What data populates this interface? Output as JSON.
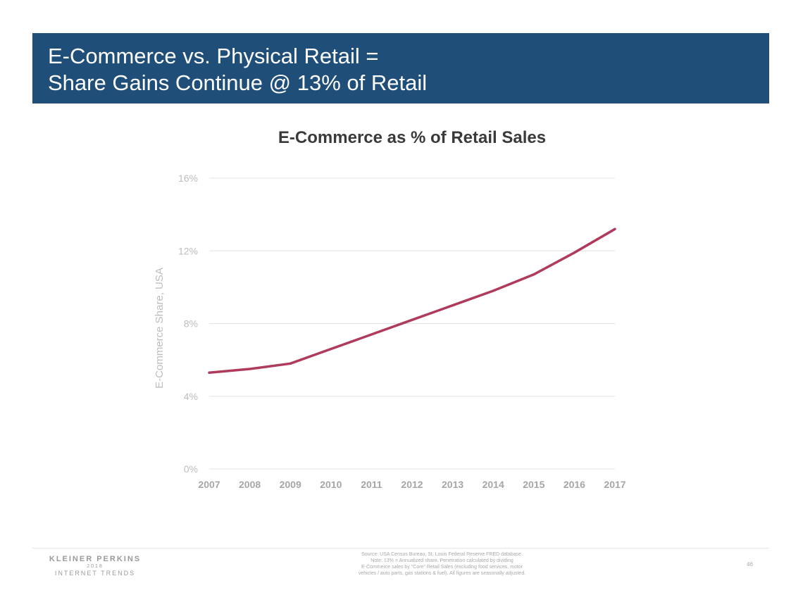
{
  "slide": {
    "title_line1": "E-Commerce vs. Physical Retail =",
    "title_line2": "Share Gains Continue @ 13% of Retail",
    "page_number": "46"
  },
  "chart_data": {
    "type": "line",
    "title": "E-Commerce as % of Retail Sales",
    "xlabel": "",
    "ylabel": "E-Commerce Share, USA",
    "x": [
      2007,
      2008,
      2009,
      2010,
      2011,
      2012,
      2013,
      2014,
      2015,
      2016,
      2017
    ],
    "categories": [
      "2007",
      "2008",
      "2009",
      "2010",
      "2011",
      "2012",
      "2013",
      "2014",
      "2015",
      "2016",
      "2017"
    ],
    "series": [
      {
        "name": "E-Commerce Share",
        "values": [
          5.3,
          5.5,
          5.8,
          6.6,
          7.4,
          8.2,
          9.0,
          9.8,
          10.7,
          11.9,
          13.2
        ],
        "color": "#b03a5b"
      }
    ],
    "ylim": [
      0,
      16
    ],
    "yticks": [
      0,
      4,
      8,
      12,
      16
    ],
    "ytick_labels": [
      "0%",
      "4%",
      "8%",
      "12%",
      "16%"
    ],
    "grid": true,
    "legend": "none"
  },
  "footer": {
    "logo_line1": "KLEINER PERKINS",
    "logo_line2": "2018",
    "logo_line3": "INTERNET TRENDS",
    "source_line1": "Source: USA Census Bureau, St. Louis Federal Reserve FRED database.",
    "source_line2": "Note: 13% = Annualized share. Penetration calculated by dividing",
    "source_line3": "E-Commerce sales by \"Core\" Retail Sales (excluding food services, motor",
    "source_line4": "vehicles / auto parts, gas stations & fuel). All figures are seasonally adjusted."
  },
  "colors": {
    "title_bar": "#1f4e79",
    "line": "#b03a5b",
    "grid": "#e3e3e3",
    "tick_text": "#bdbdbd",
    "axis_tick_text": "#a6a6a6"
  }
}
